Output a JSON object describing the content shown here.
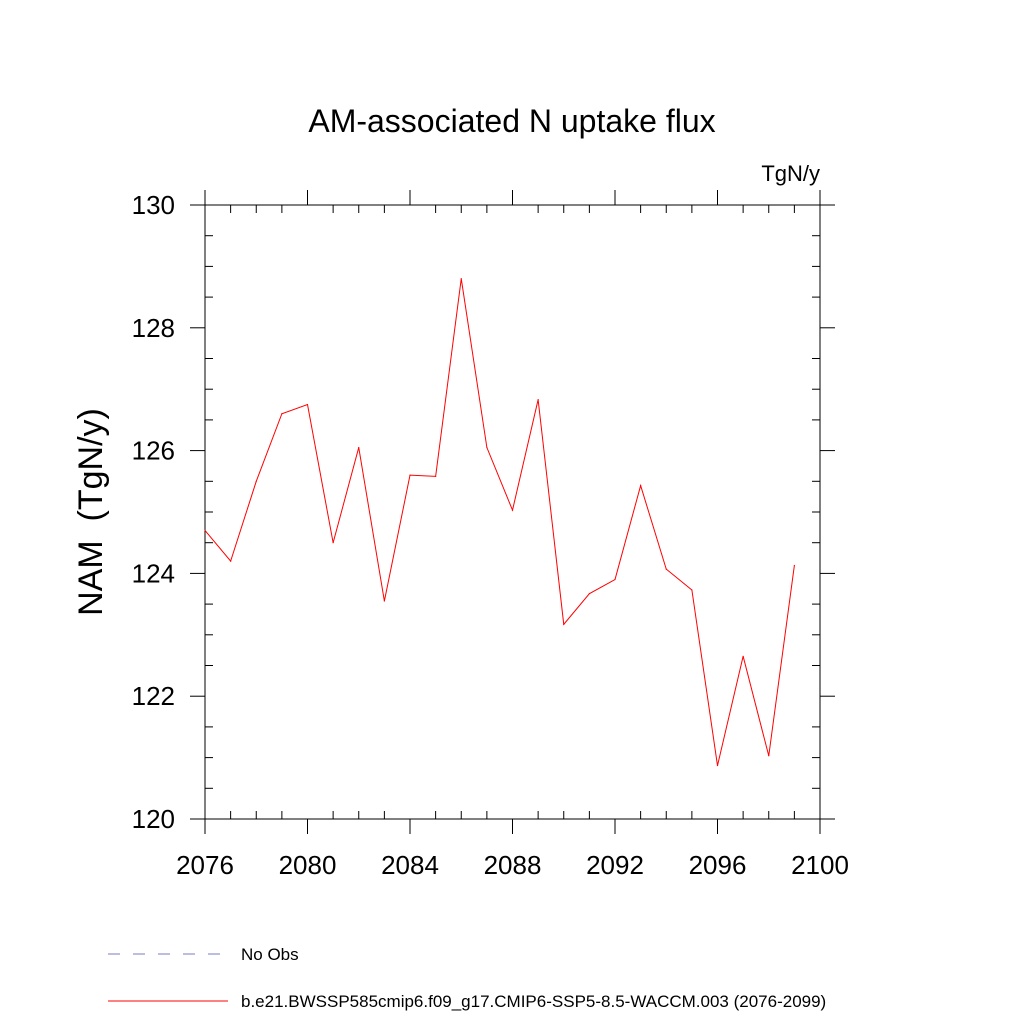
{
  "chart_data": {
    "type": "line",
    "title": "AM-associated N uptake flux",
    "units": "TgN/y",
    "ylabel": "NAM  (TgN/y)",
    "xlabel": "",
    "xlim": [
      2076,
      2100
    ],
    "ylim": [
      120,
      130
    ],
    "x_ticks": [
      2076,
      2080,
      2084,
      2088,
      2092,
      2096,
      2100
    ],
    "y_ticks": [
      120,
      122,
      124,
      126,
      128,
      130
    ],
    "x_tick_labels": [
      "2076",
      "2080",
      "2084",
      "2088",
      "2092",
      "2096",
      "2100"
    ],
    "y_tick_labels": [
      "120",
      "122",
      "124",
      "126",
      "128",
      "130"
    ],
    "grid": false,
    "series": [
      {
        "name": "b.e21.BWSSP585cmip6.f09_g17.CMIP6-SSP5-8.5-WACCM.003 (2076-2099)",
        "color": "#ff0000",
        "x": [
          2076,
          2077,
          2078,
          2079,
          2080,
          2081,
          2082,
          2083,
          2084,
          2085,
          2086,
          2087,
          2088,
          2089,
          2090,
          2091,
          2092,
          2093,
          2094,
          2095,
          2096,
          2097,
          2098,
          2099
        ],
        "values": [
          124.7,
          124.2,
          125.5,
          126.6,
          126.75,
          124.5,
          126.05,
          123.55,
          125.6,
          125.58,
          128.8,
          126.05,
          125.03,
          126.83,
          123.17,
          123.67,
          123.9,
          125.43,
          124.07,
          123.73,
          120.87,
          122.65,
          121.03,
          124.13
        ]
      }
    ],
    "legend": [
      {
        "label": "No Obs",
        "style": "dashed",
        "color": "#7b7bc4"
      },
      {
        "label": "b.e21.BWSSP585cmip6.f09_g17.CMIP6-SSP5-8.5-WACCM.003 (2076-2099)",
        "style": "solid",
        "color": "#ff0000"
      }
    ],
    "legend_position": "bottom-left"
  }
}
